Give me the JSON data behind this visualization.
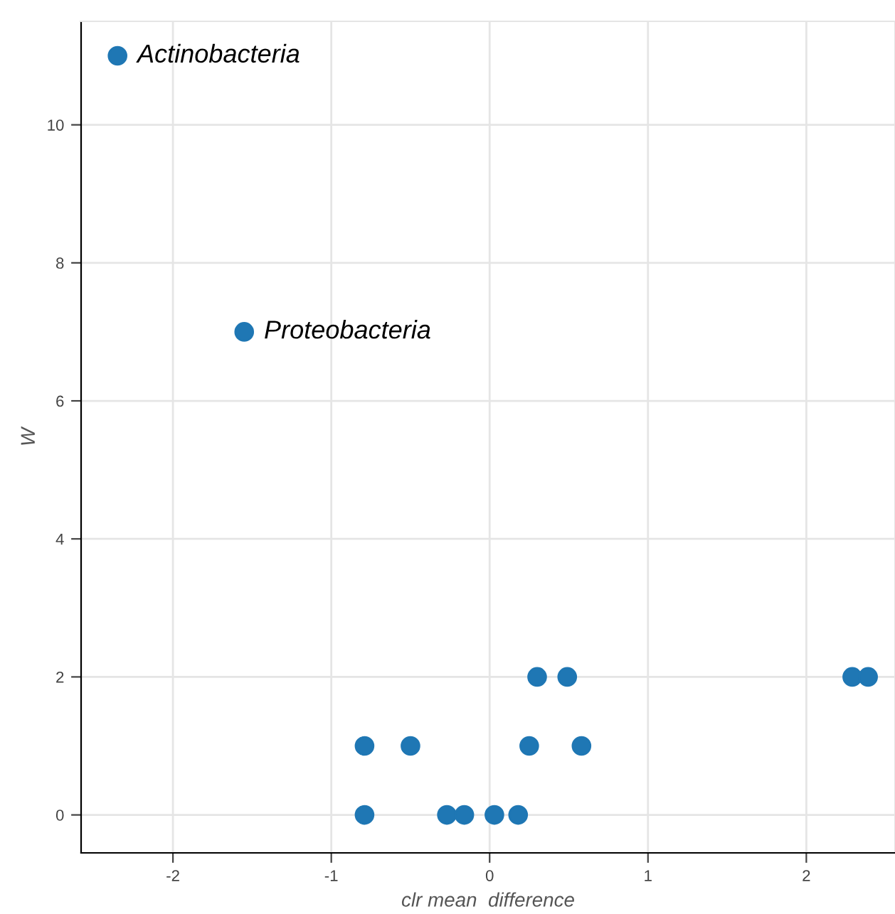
{
  "chart_data": {
    "type": "scatter",
    "xlabel": "clr mean  difference",
    "ylabel": "W",
    "x": [
      -2.35,
      -1.55,
      -0.79,
      -0.79,
      -0.5,
      -0.27,
      -0.16,
      0.03,
      0.18,
      0.25,
      0.3,
      0.49,
      0.58,
      2.29,
      2.39
    ],
    "series": [
      {
        "color": "#1f77b4",
        "values": [
          11,
          7,
          1,
          0,
          1,
          0,
          0,
          0,
          0,
          1,
          2,
          2,
          1,
          2,
          2
        ]
      }
    ],
    "marker": "circle",
    "grid": true,
    "legend": false,
    "xlim": [
      -2.58,
      2.56
    ],
    "xticks": [
      -2,
      -1,
      0,
      1,
      2
    ],
    "ylim": [
      -0.55,
      11.5
    ],
    "yticks": [
      0,
      2,
      4,
      6,
      8,
      10
    ],
    "annotations": [
      {
        "text": "Actinobacteria",
        "x": -2.35,
        "y": 11
      },
      {
        "text": "Proteobacteria",
        "x": -1.55,
        "y": 7
      }
    ]
  }
}
